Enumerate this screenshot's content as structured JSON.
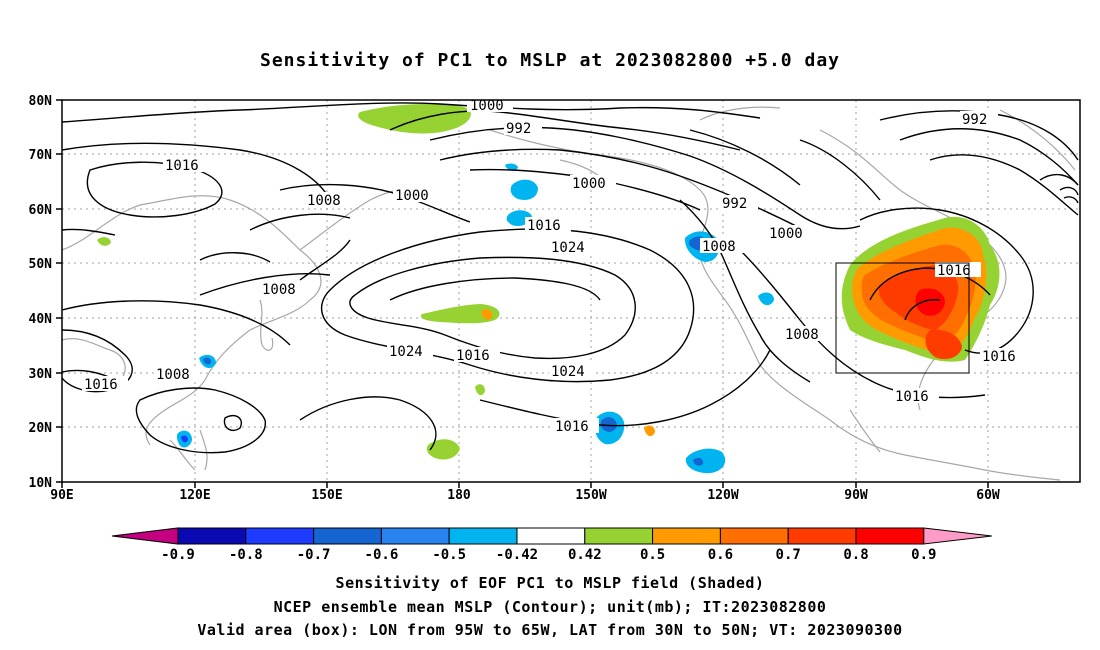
{
  "title": "Sensitivity of PC1 to MSLP at 2023082800 +5.0 day",
  "axes": {
    "lon_ticks": [
      "90E",
      "120E",
      "150E",
      "180",
      "150W",
      "120W",
      "90W",
      "60W"
    ],
    "lat_ticks": [
      "80N",
      "70N",
      "60N",
      "50N",
      "40N",
      "30N",
      "20N",
      "10N"
    ]
  },
  "contours": {
    "labels": [
      "1000",
      "992",
      "1016",
      "1008",
      "1000",
      "1000",
      "992",
      "1016",
      "1024",
      "1008",
      "1000",
      "1008",
      "1016",
      "1008",
      "1024",
      "1016",
      "1016",
      "1008",
      "1024",
      "1016",
      "1016",
      "992",
      "1016"
    ]
  },
  "legend": {
    "labels": [
      "-0.9",
      "-0.8",
      "-0.7",
      "-0.6",
      "-0.5",
      "-0.42",
      "0.42",
      "0.5",
      "0.6",
      "0.7",
      "0.8",
      "0.9"
    ],
    "colors": [
      "#c40080",
      "#0a0ab4",
      "#1e3cff",
      "#1464d2",
      "#2882f0",
      "#00b4f0",
      "#ffffff",
      "#96d232",
      "#ff9b00",
      "#ff6e00",
      "#ff3c00",
      "#ff0000",
      "#ff9bc8"
    ]
  },
  "footer": {
    "line1": "Sensitivity of EOF PC1 to MSLP field (Shaded)",
    "line2": "NCEP ensemble mean MSLP (Contour); unit(mb); IT:2023082800",
    "line3": "Valid area (box): LON from 95W to 65W, LAT from 30N to 50N; VT: 2023090300"
  }
}
